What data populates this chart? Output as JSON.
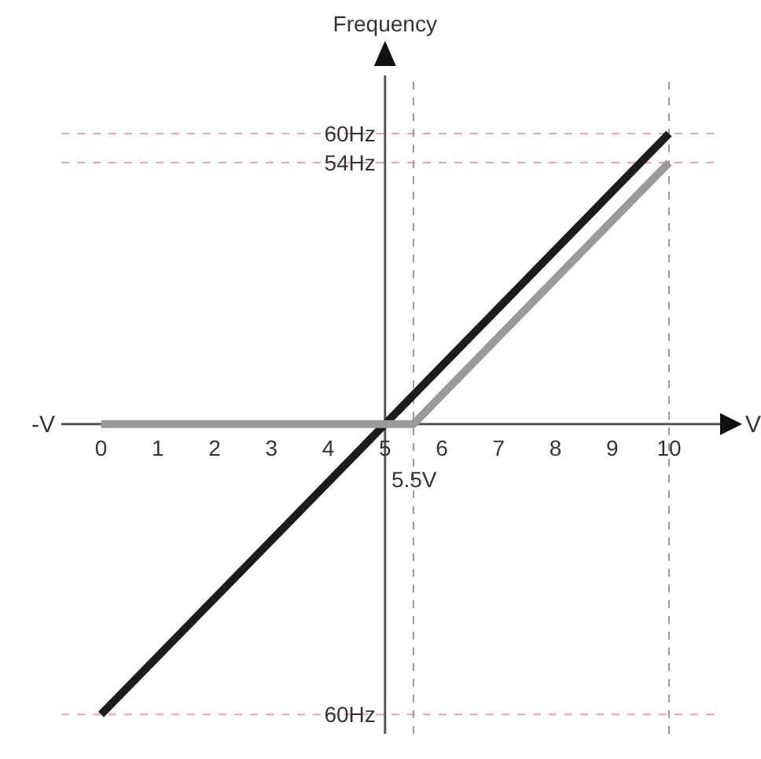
{
  "chart_data": {
    "type": "line",
    "ylabel": "Frequency",
    "xlabel": "V",
    "marker": "none",
    "xlim": [
      -0.7,
      10.9
    ],
    "xticks": [
      0,
      1,
      2,
      3,
      4,
      5,
      6,
      7,
      8,
      9,
      10
    ],
    "ylim": [
      -64,
      72
    ],
    "yticks": [
      {
        "value": 60,
        "label": "60Hz"
      },
      {
        "value": 54,
        "label": "54Hz"
      },
      {
        "value": -60,
        "label": "60Hz"
      }
    ],
    "series": [
      {
        "color": "#1c1c1c",
        "x": [
          0,
          5,
          10
        ],
        "values": [
          -60,
          0,
          60
        ]
      },
      {
        "color": "#9a9a9a",
        "x": [
          0,
          5.5,
          10
        ],
        "values": [
          0,
          0,
          54
        ]
      }
    ],
    "ref_lines": [
      {
        "axis": "y",
        "value": 60,
        "color": "#f2a0b4",
        "line_style": "dashed"
      },
      {
        "axis": "y",
        "value": 54,
        "color": "#f2a0b4",
        "line_style": "dashed"
      },
      {
        "axis": "y",
        "value": -60,
        "color": "#f2a0b4",
        "line_style": "dashed"
      },
      {
        "axis": "x",
        "value": 5.5,
        "color": "#9a9a9a",
        "line_style": "dashed"
      },
      {
        "axis": "x",
        "value": 10,
        "color": "#9a9a9a",
        "line_style": "dashed"
      }
    ],
    "annotations": [
      "-V",
      {
        "text": "5.5V",
        "x": 5.5,
        "y": 0
      }
    ]
  }
}
